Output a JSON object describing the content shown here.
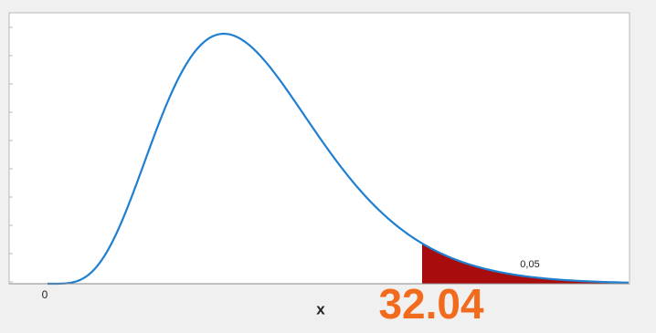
{
  "axis_origin_label": "0",
  "x_label": "x",
  "critical_value": "32.04",
  "tail_area_label": "0,05"
}
